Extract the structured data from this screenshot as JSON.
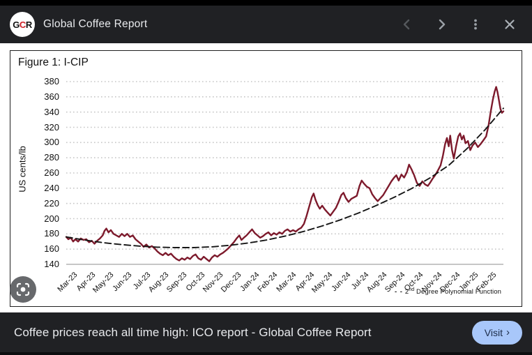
{
  "header": {
    "logo_parts": [
      "G",
      "C",
      "R"
    ],
    "title": "Global Coffee Report"
  },
  "chart": {
    "figure_title": "Figure 1: I-CIP",
    "y_axis_label": "US cents/lb",
    "y_ticks": [
      380,
      360,
      340,
      320,
      300,
      280,
      260,
      240,
      220,
      200,
      180,
      160,
      140
    ],
    "x_ticks": [
      "Mar-23",
      "Apr-23",
      "May-23",
      "Jun-23",
      "Jul-23",
      "Aug-23",
      "Sep-23",
      "Oct-23",
      "Nov-23",
      "Dec-23",
      "Jan-24",
      "Feb-24",
      "Mar-24",
      "Apr-24",
      "May-24",
      "Jun-24",
      "Jul-24",
      "Aug-24",
      "Sep-24",
      "Oct-24",
      "Nov-24",
      "Dec-24",
      "Jan-25",
      "Feb-25"
    ],
    "legend": {
      "dashes": "- -",
      "base": "2",
      "sup": "nd",
      "rest": " Degree Polynomial Function"
    },
    "colors": {
      "line": "#7d1a2c",
      "trend": "#151515",
      "grid": "#c6c6c6",
      "axis": "#b3b3b3"
    }
  },
  "chart_data": {
    "type": "line",
    "title": "Figure 1: I-CIP",
    "ylabel": "US cents/lb",
    "ylim": [
      140,
      380
    ],
    "x_unit": "months since Mar-2023 (fractional, 0 = Mar-23, 24 = end Feb-25)",
    "categories": [
      "Mar-23",
      "Apr-23",
      "May-23",
      "Jun-23",
      "Jul-23",
      "Aug-23",
      "Sep-23",
      "Oct-23",
      "Nov-23",
      "Dec-23",
      "Jan-24",
      "Feb-24",
      "Mar-24",
      "Apr-24",
      "May-24",
      "Jun-24",
      "Jul-24",
      "Aug-24",
      "Sep-24",
      "Oct-24",
      "Nov-24",
      "Dec-24",
      "Jan-25",
      "Feb-25"
    ],
    "grid": "dotted horizontal",
    "legend_position": "bottom-right",
    "series": [
      {
        "name": "I-CIP",
        "style": "solid",
        "color": "#7d1a2c",
        "points": [
          [
            0,
            176
          ],
          [
            0.12,
            173
          ],
          [
            0.25,
            175
          ],
          [
            0.38,
            170
          ],
          [
            0.5,
            173
          ],
          [
            0.65,
            170
          ],
          [
            0.8,
            174
          ],
          [
            0.95,
            172
          ],
          [
            1.1,
            173
          ],
          [
            1.25,
            169
          ],
          [
            1.4,
            171
          ],
          [
            1.55,
            167
          ],
          [
            1.7,
            171
          ],
          [
            1.85,
            174
          ],
          [
            2.0,
            178
          ],
          [
            2.1,
            184
          ],
          [
            2.2,
            187
          ],
          [
            2.32,
            182
          ],
          [
            2.45,
            185
          ],
          [
            2.6,
            180
          ],
          [
            2.75,
            178
          ],
          [
            2.9,
            176
          ],
          [
            3.05,
            180
          ],
          [
            3.2,
            177
          ],
          [
            3.35,
            180
          ],
          [
            3.5,
            176
          ],
          [
            3.65,
            178
          ],
          [
            3.8,
            173
          ],
          [
            3.95,
            170
          ],
          [
            4.1,
            167
          ],
          [
            4.25,
            163
          ],
          [
            4.4,
            166
          ],
          [
            4.55,
            162
          ],
          [
            4.7,
            164
          ],
          [
            4.85,
            161
          ],
          [
            5.0,
            157
          ],
          [
            5.15,
            154
          ],
          [
            5.3,
            152
          ],
          [
            5.45,
            155
          ],
          [
            5.6,
            152
          ],
          [
            5.75,
            154
          ],
          [
            5.9,
            150
          ],
          [
            6.05,
            147
          ],
          [
            6.2,
            145
          ],
          [
            6.35,
            148
          ],
          [
            6.5,
            146
          ],
          [
            6.65,
            149
          ],
          [
            6.8,
            147
          ],
          [
            6.95,
            151
          ],
          [
            7.1,
            153
          ],
          [
            7.25,
            148
          ],
          [
            7.4,
            146
          ],
          [
            7.55,
            150
          ],
          [
            7.7,
            147
          ],
          [
            7.85,
            144
          ],
          [
            8.0,
            149
          ],
          [
            8.15,
            152
          ],
          [
            8.3,
            150
          ],
          [
            8.45,
            153
          ],
          [
            8.6,
            155
          ],
          [
            8.75,
            158
          ],
          [
            8.9,
            161
          ],
          [
            9.05,
            165
          ],
          [
            9.2,
            169
          ],
          [
            9.35,
            174
          ],
          [
            9.5,
            178
          ],
          [
            9.62,
            172
          ],
          [
            9.75,
            175
          ],
          [
            9.9,
            178
          ],
          [
            10.05,
            182
          ],
          [
            10.2,
            186
          ],
          [
            10.35,
            181
          ],
          [
            10.5,
            178
          ],
          [
            10.65,
            175
          ],
          [
            10.8,
            177
          ],
          [
            10.95,
            180
          ],
          [
            11.1,
            182
          ],
          [
            11.25,
            178
          ],
          [
            11.4,
            181
          ],
          [
            11.55,
            179
          ],
          [
            11.7,
            182
          ],
          [
            11.85,
            180
          ],
          [
            12.0,
            184
          ],
          [
            12.15,
            186
          ],
          [
            12.3,
            183
          ],
          [
            12.45,
            185
          ],
          [
            12.6,
            183
          ],
          [
            12.75,
            186
          ],
          [
            12.9,
            188
          ],
          [
            13.05,
            193
          ],
          [
            13.2,
            204
          ],
          [
            13.35,
            217
          ],
          [
            13.48,
            228
          ],
          [
            13.58,
            233
          ],
          [
            13.68,
            225
          ],
          [
            13.8,
            218
          ],
          [
            13.92,
            213
          ],
          [
            14.05,
            217
          ],
          [
            14.2,
            212
          ],
          [
            14.35,
            208
          ],
          [
            14.5,
            204
          ],
          [
            14.65,
            209
          ],
          [
            14.8,
            214
          ],
          [
            14.95,
            222
          ],
          [
            15.1,
            231
          ],
          [
            15.22,
            234
          ],
          [
            15.35,
            227
          ],
          [
            15.5,
            222
          ],
          [
            15.65,
            226
          ],
          [
            15.8,
            228
          ],
          [
            15.95,
            230
          ],
          [
            16.1,
            243
          ],
          [
            16.22,
            250
          ],
          [
            16.35,
            246
          ],
          [
            16.5,
            242
          ],
          [
            16.65,
            240
          ],
          [
            16.8,
            232
          ],
          [
            16.95,
            227
          ],
          [
            17.1,
            223
          ],
          [
            17.25,
            227
          ],
          [
            17.4,
            231
          ],
          [
            17.55,
            237
          ],
          [
            17.7,
            243
          ],
          [
            17.85,
            249
          ],
          [
            18.0,
            254
          ],
          [
            18.12,
            257
          ],
          [
            18.25,
            250
          ],
          [
            18.4,
            258
          ],
          [
            18.55,
            254
          ],
          [
            18.7,
            261
          ],
          [
            18.82,
            271
          ],
          [
            18.95,
            265
          ],
          [
            19.1,
            257
          ],
          [
            19.25,
            247
          ],
          [
            19.4,
            243
          ],
          [
            19.55,
            249
          ],
          [
            19.7,
            245
          ],
          [
            19.85,
            243
          ],
          [
            19.97,
            247
          ],
          [
            20.1,
            252
          ],
          [
            20.25,
            257
          ],
          [
            20.4,
            263
          ],
          [
            20.55,
            270
          ],
          [
            20.68,
            283
          ],
          [
            20.8,
            298
          ],
          [
            20.9,
            306
          ],
          [
            21.0,
            295
          ],
          [
            21.08,
            309
          ],
          [
            21.18,
            290
          ],
          [
            21.28,
            279
          ],
          [
            21.4,
            295
          ],
          [
            21.52,
            308
          ],
          [
            21.62,
            312
          ],
          [
            21.72,
            304
          ],
          [
            21.82,
            309
          ],
          [
            21.92,
            299
          ],
          [
            22.05,
            302
          ],
          [
            22.18,
            290
          ],
          [
            22.3,
            296
          ],
          [
            22.45,
            300
          ],
          [
            22.6,
            294
          ],
          [
            22.75,
            298
          ],
          [
            22.9,
            303
          ],
          [
            23.05,
            308
          ],
          [
            23.18,
            322
          ],
          [
            23.3,
            340
          ],
          [
            23.42,
            356
          ],
          [
            23.52,
            367
          ],
          [
            23.6,
            373
          ],
          [
            23.68,
            366
          ],
          [
            23.76,
            355
          ],
          [
            23.84,
            344
          ],
          [
            23.92,
            339
          ],
          [
            24.0,
            341
          ]
        ]
      },
      {
        "name": "2nd Degree Polynomial Function",
        "style": "dashed",
        "color": "#151515",
        "points": [
          [
            0,
            176
          ],
          [
            1,
            172
          ],
          [
            2,
            168.5
          ],
          [
            3,
            166
          ],
          [
            4,
            164
          ],
          [
            5,
            162.5
          ],
          [
            6,
            162
          ],
          [
            7,
            162
          ],
          [
            8,
            163
          ],
          [
            9,
            165
          ],
          [
            10,
            168
          ],
          [
            11,
            172
          ],
          [
            12,
            177
          ],
          [
            13,
            183
          ],
          [
            14,
            190
          ],
          [
            15,
            198
          ],
          [
            16,
            207
          ],
          [
            17,
            217
          ],
          [
            18,
            228
          ],
          [
            19,
            240
          ],
          [
            20,
            254
          ],
          [
            21,
            270
          ],
          [
            22,
            292
          ],
          [
            23,
            317
          ],
          [
            24,
            345
          ]
        ]
      }
    ]
  },
  "footer": {
    "headline": "Coffee prices reach all time high: ICO report - Global Coffee Report",
    "visit_label": "Visit",
    "visit_chevron": "›"
  }
}
